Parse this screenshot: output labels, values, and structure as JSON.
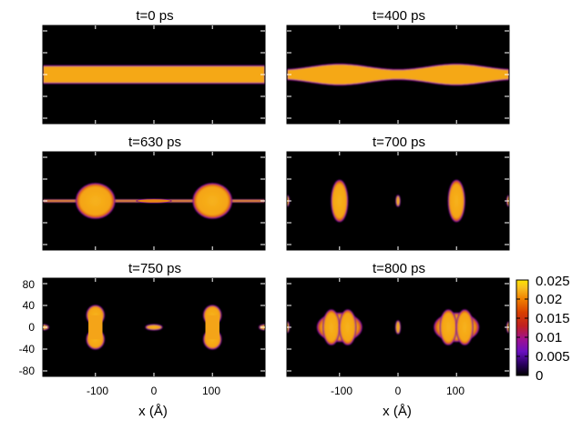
{
  "chart_data": {
    "type": "heatmap",
    "colormap": "black-purple-red-orange-yellow",
    "colorbar": {
      "min": 0,
      "max": 0.025,
      "tick_labels": [
        "0.025",
        "0.02",
        "0.015",
        "0.01",
        "0.005",
        "0"
      ],
      "tick_values": [
        0.025,
        0.02,
        0.015,
        0.01,
        0.005,
        0
      ]
    },
    "x_axis": {
      "label": "x (Å)",
      "range": [
        -190,
        190
      ],
      "tick_labels": [
        "-100",
        "0",
        "100"
      ],
      "tick_values": [
        -100,
        0,
        100
      ]
    },
    "y_axis": {
      "range": [
        -90,
        90
      ],
      "tick_labels": [
        "80",
        "40",
        "0",
        "-40",
        "-80"
      ],
      "tick_values": [
        80,
        40,
        0,
        -40,
        -80
      ]
    },
    "panels": [
      {
        "title": "t=0 ps",
        "time_ps": 0,
        "structure": "uniform cylinder",
        "radius": 16
      },
      {
        "title": "t=400 ps",
        "time_ps": 400,
        "structure": "undulating cylinder",
        "radius_range": [
          9,
          19
        ]
      },
      {
        "title": "t=630 ps",
        "time_ps": 630,
        "structure": "two droplets with thin necks",
        "droplet_centers_x": [
          -100,
          100
        ],
        "droplet_radius": 33
      },
      {
        "title": "t=700 ps",
        "time_ps": 700,
        "structure": "vertically elongated droplets",
        "droplet_centers_x": [
          -100,
          100
        ],
        "satellite_x": [
          -190,
          0,
          190
        ]
      },
      {
        "title": "t=750 ps",
        "time_ps": 750,
        "structure": "peanut-shaped droplets",
        "droplet_centers_x": [
          -100,
          100
        ],
        "satellite_x": [
          -190,
          0,
          190
        ]
      },
      {
        "title": "t=800 ps",
        "time_ps": 800,
        "structure": "oblate droplets",
        "droplet_centers_x": [
          -100,
          100
        ],
        "satellite_x": [
          -190,
          0,
          190
        ]
      }
    ]
  }
}
